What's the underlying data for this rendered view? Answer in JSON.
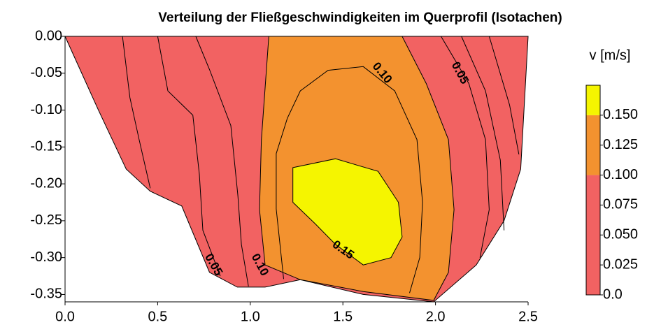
{
  "chart_data": {
    "type": "contour",
    "title": "Verteilung der Fließgeschwindigkeiten im Querprofil (Isotachen)",
    "xlim": [
      0,
      2.5
    ],
    "ylim": [
      -0.36,
      0
    ],
    "xticks": [
      {
        "value": 0,
        "label": "0.0"
      },
      {
        "value": 0.5,
        "label": "0.5"
      },
      {
        "value": 1,
        "label": "1.0"
      },
      {
        "value": 1.5,
        "label": "1.5"
      },
      {
        "value": 2,
        "label": "2.0"
      },
      {
        "value": 2.5,
        "label": "2.5"
      }
    ],
    "yticks": [
      {
        "value": 0,
        "label": "0.00"
      },
      {
        "value": -0.05,
        "label": "-0.05"
      },
      {
        "value": -0.1,
        "label": "-0.10"
      },
      {
        "value": -0.15,
        "label": "-0.15"
      },
      {
        "value": -0.2,
        "label": "-0.20"
      },
      {
        "value": -0.25,
        "label": "-0.25"
      },
      {
        "value": -0.3,
        "label": "-0.30"
      },
      {
        "value": -0.35,
        "label": "-0.35"
      }
    ],
    "regions": [
      {
        "level": 0,
        "color": "#f26262",
        "x": [
          0,
          0.18,
          0.33,
          0.46,
          0.63,
          0.78,
          0.93,
          1.08,
          1.27,
          1.61,
          1.99,
          2.22,
          2.37,
          2.46,
          2.5
        ],
        "y": [
          0,
          -0.1,
          -0.18,
          -0.21,
          -0.23,
          -0.32,
          -0.34,
          -0.34,
          -0.33,
          -0.35,
          -0.36,
          -0.31,
          -0.25,
          -0.18,
          0
        ]
      },
      {
        "level": 0.1,
        "color": "#f3922f",
        "x": [
          1.1,
          1.06,
          1.05,
          1.08,
          1.27,
          1.61,
          1.99,
          2.07,
          2.1,
          2.07,
          1.95,
          1.82
        ],
        "y": [
          0,
          -0.14,
          -0.235,
          -0.31,
          -0.33,
          -0.346,
          -0.358,
          -0.32,
          -0.235,
          -0.14,
          -0.064,
          0
        ]
      },
      {
        "level": 0.15,
        "color": "#f5f500",
        "x": [
          1.23,
          1.46,
          1.69,
          1.8,
          1.82,
          1.76,
          1.61,
          1.46,
          1.35,
          1.23
        ],
        "y": [
          -0.178,
          -0.166,
          -0.183,
          -0.225,
          -0.272,
          -0.3,
          -0.31,
          -0.282,
          -0.254,
          -0.225
        ]
      }
    ],
    "contours": [
      {
        "level": 0.025,
        "x": [
          0.31,
          0.35,
          0.4,
          0.46
        ],
        "y": [
          0,
          -0.083,
          -0.14,
          -0.206
        ]
      },
      {
        "level": 0.05,
        "x": [
          0.5,
          0.555,
          0.69,
          0.725,
          0.744,
          0.838
        ],
        "y": [
          0,
          -0.074,
          -0.107,
          -0.187,
          -0.263,
          -0.325
        ]
      },
      {
        "level": 0.075,
        "x": [
          0.706,
          0.78,
          0.895,
          0.933,
          0.952,
          0.99
        ],
        "y": [
          0,
          -0.045,
          -0.121,
          -0.216,
          -0.282,
          -0.339
        ]
      },
      {
        "level": 0.125,
        "x": [
          1.18,
          1.14,
          1.14,
          1.2,
          1.27,
          1.42,
          1.61,
          1.78,
          1.9,
          1.93,
          1.915,
          1.86
        ],
        "y": [
          -0.329,
          -0.234,
          -0.159,
          -0.111,
          -0.074,
          -0.046,
          -0.041,
          -0.074,
          -0.14,
          -0.225,
          -0.3,
          -0.348
        ]
      },
      {
        "level": 0.075,
        "x": [
          2.03,
          2.18,
          2.27,
          2.29,
          2.24
        ],
        "y": [
          0,
          -0.064,
          -0.14,
          -0.235,
          -0.3
        ]
      },
      {
        "level": 0.05,
        "x": [
          2.14,
          2.27,
          2.35,
          2.37
        ],
        "y": [
          0,
          -0.074,
          -0.168,
          -0.263
        ]
      },
      {
        "level": 0.025,
        "x": [
          2.29,
          2.4,
          2.45
        ],
        "y": [
          0,
          -0.093,
          -0.16
        ]
      }
    ],
    "contour_labels": [
      {
        "value": 0.1,
        "label": "0.10",
        "x": 1.71,
        "y": -0.05
      },
      {
        "value": 0.05,
        "label": "0.05",
        "x": 2.13,
        "y": -0.05
      },
      {
        "value": 0.05,
        "label": "0.05",
        "x": 0.8,
        "y": -0.31
      },
      {
        "value": 0.1,
        "label": "0.10",
        "x": 1.05,
        "y": -0.31
      },
      {
        "value": 0.15,
        "label": "0.15",
        "x": 1.5,
        "y": -0.29
      }
    ],
    "colorbar": {
      "title": "v [m/s]",
      "clim": [
        0,
        0.175
      ],
      "ticks": [
        {
          "value": 0.15,
          "label": "0.150"
        },
        {
          "value": 0.125,
          "label": "0.125"
        },
        {
          "value": 0.1,
          "label": "0.100"
        },
        {
          "value": 0.075,
          "label": "0.075"
        },
        {
          "value": 0.05,
          "label": "0.050"
        },
        {
          "value": 0.025,
          "label": "0.025"
        },
        {
          "value": 0,
          "label": "0.0"
        }
      ]
    }
  }
}
